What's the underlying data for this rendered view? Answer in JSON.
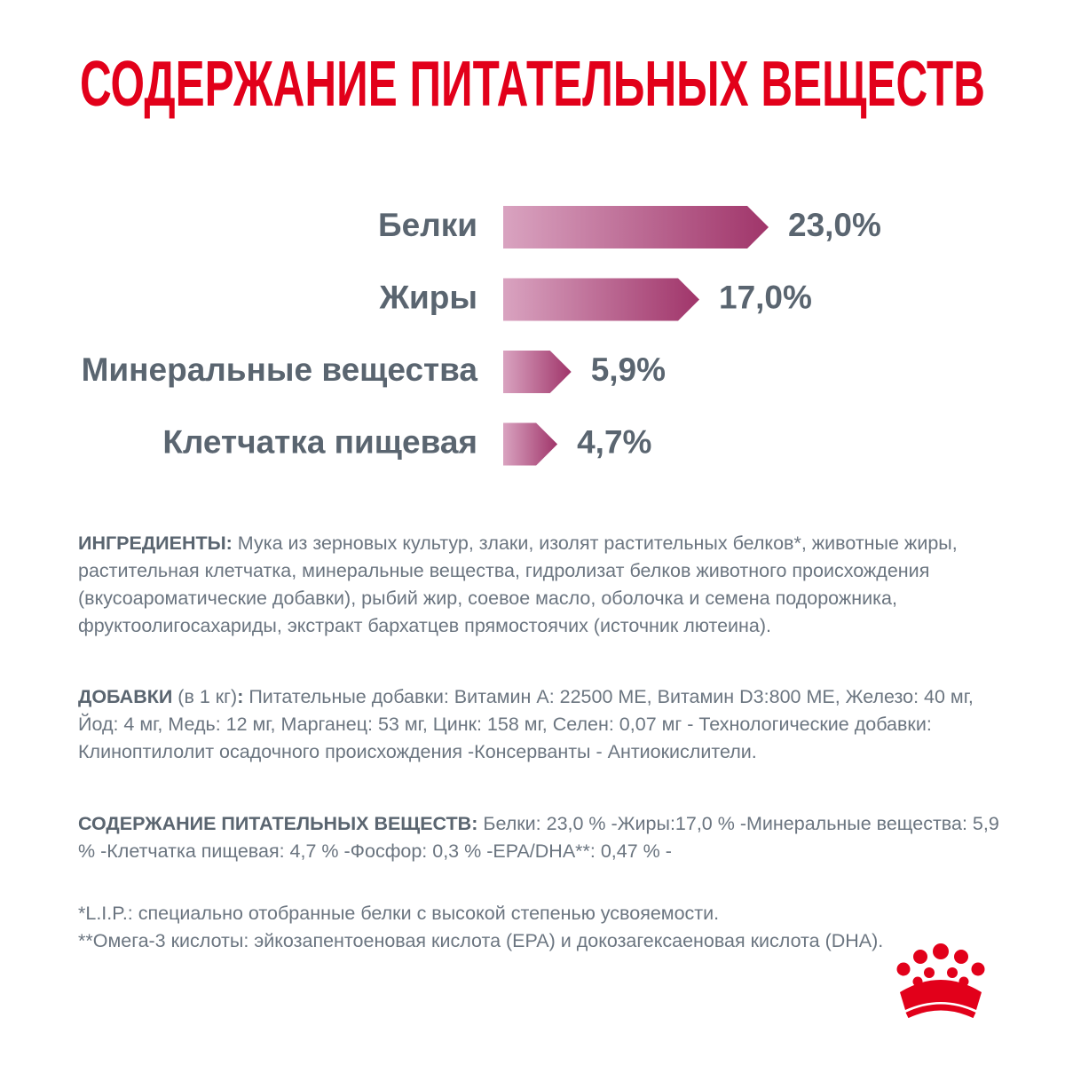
{
  "chart_data": {
    "type": "bar",
    "orientation": "horizontal",
    "title": "СОДЕРЖАНИЕ ПИТАТЕЛЬНЫХ ВЕЩЕСТВ",
    "title_color": "#e2001a",
    "categories": [
      "Белки",
      "Жиры",
      "Минеральные вещества",
      "Клетчатка пищевая"
    ],
    "values": [
      23.0,
      17.0,
      5.9,
      4.7
    ],
    "value_labels": [
      "23,0%",
      "17,0%",
      "5,9%",
      "4,7%"
    ],
    "gradient": [
      "#d9a3c0",
      "#a0356a"
    ]
  },
  "paragraphs": [
    [
      {
        "text": "ИНГРЕДИЕНТЫ:",
        "bold": true
      },
      {
        "text": " Мука из зерновых культур, злаки, изолят растительных белков*, животные жиры, растительная клетчатка, минеральные вещества, гидролизат белков животного происхождения (вкусоароматические добавки), рыбий жир, соевое масло, оболочка и семена подорожника, фруктоолигосахариды, экстракт бархатцев прямостоячих (источник лютеина).",
        "bold": false
      }
    ],
    [
      {
        "text": "ДОБАВКИ",
        "bold": true
      },
      {
        "text": " (в 1 кг)",
        "bold": false
      },
      {
        "text": ":",
        "bold": true
      },
      {
        "text": " Питательные добавки: Витамин А: 22500 МЕ, Витамин D3:800 МЕ, Железо: 40 мг, Йод: 4 мг, Медь: 12 мг, Марганец: 53 мг, Цинк: 158 мг, Селен: 0,07 мг - Технологические добавки: Клиноптилолит осадочного происхождения -Консерванты - Антиокислители.",
        "bold": false
      }
    ],
    [
      {
        "text": "СОДЕРЖАНИЕ ПИТАТЕЛЬНЫХ ВЕЩЕСТВ:",
        "bold": true
      },
      {
        "text": " Белки: 23,0 % -Жиры:17,0 % -Минеральные вещества: 5,9 % -Клетчатка пищевая: 4,7 % -Фосфор: 0,3 % -EPA/DHA**: 0,47 % -",
        "bold": false
      }
    ]
  ],
  "footnotes": [
    "*L.I.P.: специально отобранные белки с высокой степенью усвояемости.",
    "**Омега-3 кислоты: эйкозапентоеновая кислота (EPA) и докозагексаеновая кислота (DHA)."
  ]
}
